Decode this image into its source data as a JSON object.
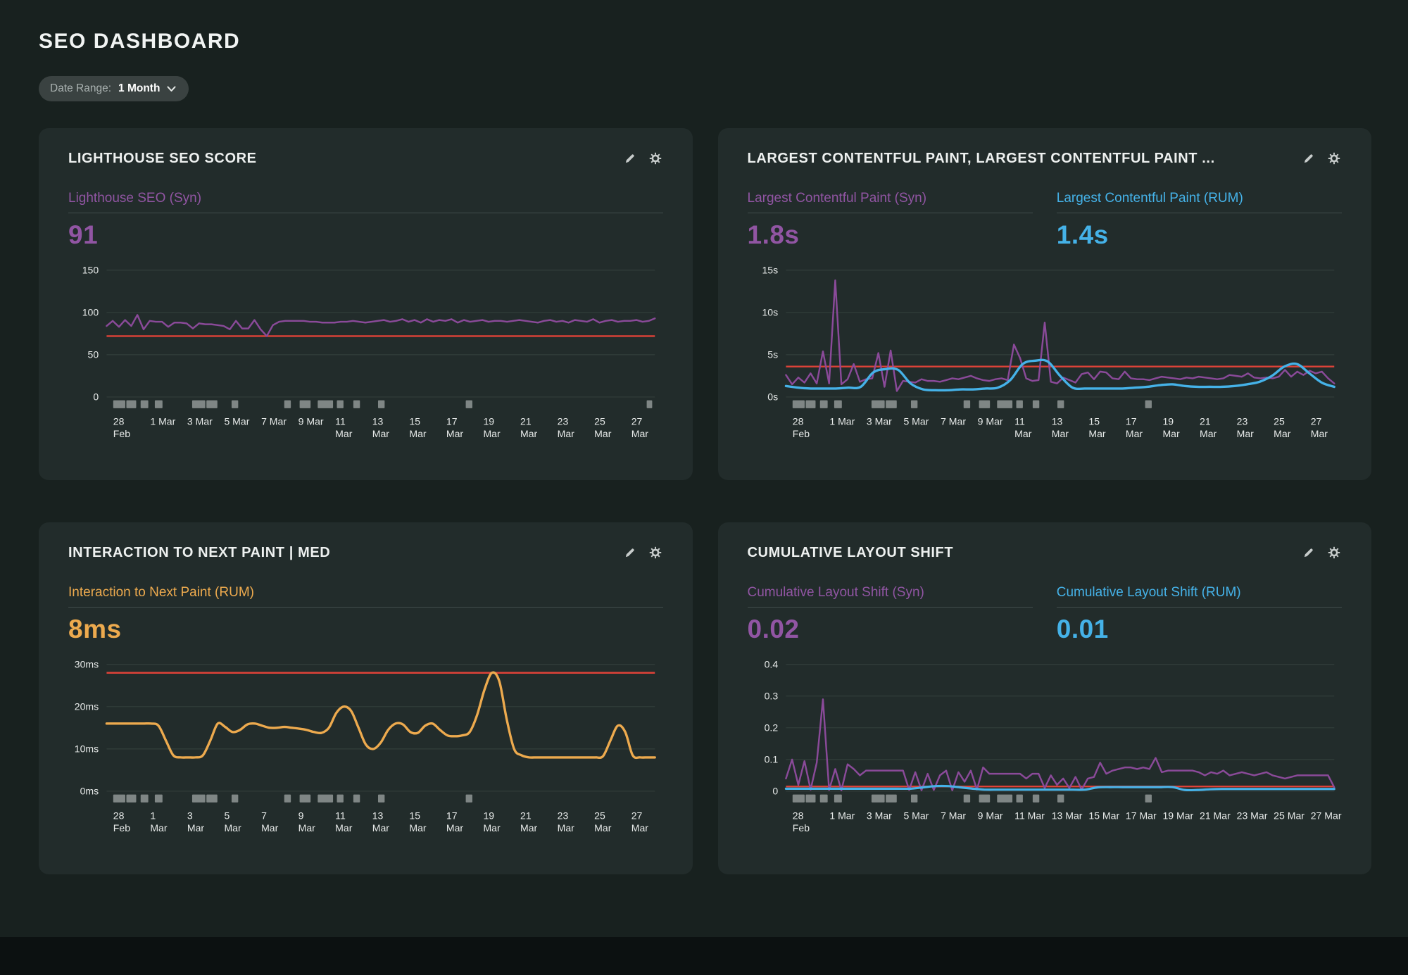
{
  "header": {
    "title": "SEO DASHBOARD"
  },
  "date_range": {
    "label": "Date Range:",
    "value": "1 Month"
  },
  "panel_actions": {
    "edit": "edit-widget",
    "settings": "widget-settings"
  },
  "colors": {
    "page_bg": "#18211f",
    "panel_bg": "#222c2b",
    "purple": "#9155a3",
    "purple_line": "#8a4a99",
    "blue": "#45b2e8",
    "orange": "#edaa4e",
    "red": "#de4238",
    "marker": "#8f9695",
    "grid": "#37423f"
  },
  "chart_data": [
    {
      "type": "line",
      "title": "LIGHTHOUSE SEO SCORE",
      "metrics": [
        {
          "label": "Lighthouse SEO (Syn)",
          "value": "91",
          "color": "#9155a3"
        }
      ],
      "ylim": [
        0,
        150
      ],
      "yticks": [
        {
          "v": 150,
          "label": "150"
        },
        {
          "v": 100,
          "label": "100"
        },
        {
          "v": 50,
          "label": "50"
        },
        {
          "v": 0,
          "label": "0"
        }
      ],
      "threshold": 72,
      "x_labels": [
        [
          "28",
          "Feb"
        ],
        [
          "1 Mar"
        ],
        [
          "3 Mar"
        ],
        [
          "5 Mar"
        ],
        [
          "7 Mar"
        ],
        [
          "9 Mar"
        ],
        [
          "11",
          "Mar"
        ],
        [
          "13",
          "Mar"
        ],
        [
          "15",
          "Mar"
        ],
        [
          "17",
          "Mar"
        ],
        [
          "19",
          "Mar"
        ],
        [
          "21",
          "Mar"
        ],
        [
          "23",
          "Mar"
        ],
        [
          "25",
          "Mar"
        ],
        [
          "27",
          "Mar"
        ]
      ],
      "series": [
        {
          "name": "Lighthouse SEO (Syn)",
          "color": "#8a4a99",
          "width": 2.6,
          "smooth": false,
          "values": [
            84,
            90,
            83,
            91,
            84,
            97,
            80,
            90,
            89,
            89,
            83,
            88,
            88,
            87,
            81,
            87,
            86,
            86,
            85,
            84,
            80,
            90,
            81,
            81,
            91,
            80,
            72,
            85,
            89,
            90,
            90,
            90,
            90,
            89,
            89,
            88,
            88,
            88,
            89,
            89,
            90,
            89,
            88,
            89,
            90,
            91,
            89,
            90,
            92,
            89,
            91,
            88,
            92,
            89,
            91,
            90,
            92,
            88,
            91,
            89,
            90,
            91,
            89,
            90,
            90,
            89,
            90,
            91,
            90,
            89,
            88,
            90,
            91,
            89,
            90,
            88,
            91,
            90,
            89,
            92,
            88,
            90,
            91,
            89,
            90,
            90,
            91,
            89,
            90,
            93
          ]
        }
      ],
      "markers": [
        [
          0.012,
          0.022
        ],
        [
          0.036,
          0.018
        ],
        [
          0.062,
          0.014
        ],
        [
          0.088,
          0.014
        ],
        [
          0.156,
          0.024
        ],
        [
          0.182,
          0.02
        ],
        [
          0.228,
          0.012
        ],
        [
          0.324,
          0.012
        ],
        [
          0.352,
          0.02
        ],
        [
          0.385,
          0.028
        ],
        [
          0.42,
          0.012
        ],
        [
          0.45,
          0.012
        ],
        [
          0.495,
          0.012
        ],
        [
          0.655,
          0.012
        ],
        [
          0.985,
          0.01
        ]
      ]
    },
    {
      "type": "line",
      "title": "LARGEST CONTENTFUL PAINT, LARGEST CONTENTFUL PAINT ...",
      "metrics": [
        {
          "label": "Largest Contentful Paint (Syn)",
          "value": "1.8s",
          "color": "#9155a3"
        },
        {
          "label": "Largest Contentful Paint (RUM)",
          "value": "1.4s",
          "color": "#45b2e8"
        }
      ],
      "ylim": [
        0,
        15
      ],
      "yticks": [
        {
          "v": 15,
          "label": "15s"
        },
        {
          "v": 10,
          "label": "10s"
        },
        {
          "v": 5,
          "label": "5s"
        },
        {
          "v": 0,
          "label": "0s"
        }
      ],
      "threshold": 3.6,
      "x_labels": [
        [
          "28",
          "Feb"
        ],
        [
          "1 Mar"
        ],
        [
          "3 Mar"
        ],
        [
          "5 Mar"
        ],
        [
          "7 Mar"
        ],
        [
          "9 Mar"
        ],
        [
          "11",
          "Mar"
        ],
        [
          "13",
          "Mar"
        ],
        [
          "15",
          "Mar"
        ],
        [
          "17",
          "Mar"
        ],
        [
          "19",
          "Mar"
        ],
        [
          "21",
          "Mar"
        ],
        [
          "23",
          "Mar"
        ],
        [
          "25",
          "Mar"
        ],
        [
          "27",
          "Mar"
        ]
      ],
      "series": [
        {
          "name": "Largest Contentful Paint (Syn)",
          "color": "#8a4a99",
          "width": 2.6,
          "smooth": false,
          "values": [
            2.6,
            1.5,
            2.3,
            1.7,
            2.8,
            1.6,
            5.4,
            1.6,
            13.8,
            1.5,
            2.1,
            3.9,
            1.8,
            2.1,
            2.2,
            5.2,
            1.2,
            5.5,
            0.7,
            1.9,
            1.8,
            1.7,
            2.1,
            1.9,
            1.9,
            1.8,
            2.0,
            2.2,
            2.1,
            2.3,
            2.5,
            2.2,
            2.0,
            1.9,
            2.1,
            2.2,
            2.0,
            6.2,
            4.6,
            2.2,
            1.9,
            2.0,
            8.8,
            1.8,
            1.6,
            2.3,
            2.0,
            1.7,
            2.7,
            2.9,
            2.1,
            3.0,
            2.9,
            2.2,
            2.1,
            3.0,
            2.2,
            2.1,
            2.1,
            2.0,
            2.2,
            2.4,
            2.3,
            2.2,
            2.1,
            2.3,
            2.2,
            2.4,
            2.3,
            2.2,
            2.1,
            2.2,
            2.6,
            2.5,
            2.4,
            2.8,
            2.3,
            2.2,
            2.3,
            2.2,
            2.4,
            3.2,
            2.4,
            3.0,
            2.6,
            3.1,
            2.8,
            3.0,
            2.2,
            1.6
          ]
        },
        {
          "name": "Largest Contentful Paint (RUM)",
          "color": "#45b2e8",
          "width": 3.6,
          "smooth": true,
          "values": [
            1.3,
            1.1,
            1.0,
            1.0,
            1.0,
            1.1,
            1.2,
            2.9,
            3.3,
            3.2,
            1.6,
            0.9,
            0.8,
            0.8,
            0.9,
            0.9,
            1.0,
            1.1,
            2.0,
            3.9,
            4.3,
            4.2,
            2.5,
            1.1,
            1.0,
            1.0,
            1.0,
            1.0,
            1.1,
            1.2,
            1.4,
            1.5,
            1.3,
            1.2,
            1.2,
            1.2,
            1.3,
            1.5,
            1.8,
            2.5,
            3.6,
            3.9,
            2.8,
            1.7,
            1.2
          ]
        }
      ],
      "markers": [
        [
          0.012,
          0.022
        ],
        [
          0.036,
          0.018
        ],
        [
          0.062,
          0.014
        ],
        [
          0.088,
          0.014
        ],
        [
          0.156,
          0.024
        ],
        [
          0.182,
          0.02
        ],
        [
          0.228,
          0.012
        ],
        [
          0.324,
          0.012
        ],
        [
          0.352,
          0.02
        ],
        [
          0.385,
          0.028
        ],
        [
          0.42,
          0.012
        ],
        [
          0.45,
          0.012
        ],
        [
          0.495,
          0.012
        ],
        [
          0.655,
          0.012
        ]
      ]
    },
    {
      "type": "line",
      "title": "INTERACTION TO NEXT PAINT | MED",
      "metrics": [
        {
          "label": "Interaction to Next Paint (RUM)",
          "value": "8ms",
          "color": "#edaa4e"
        }
      ],
      "ylim": [
        0,
        30
      ],
      "yticks": [
        {
          "v": 30,
          "label": "30ms"
        },
        {
          "v": 20,
          "label": "20ms"
        },
        {
          "v": 10,
          "label": "10ms"
        },
        {
          "v": 0,
          "label": "0ms"
        }
      ],
      "threshold": 28,
      "x_labels": [
        [
          "28",
          "Feb"
        ],
        [
          "1",
          "Mar"
        ],
        [
          "3",
          "Mar"
        ],
        [
          "5",
          "Mar"
        ],
        [
          "7",
          "Mar"
        ],
        [
          "9",
          "Mar"
        ],
        [
          "11",
          "Mar"
        ],
        [
          "13",
          "Mar"
        ],
        [
          "15",
          "Mar"
        ],
        [
          "17",
          "Mar"
        ],
        [
          "19",
          "Mar"
        ],
        [
          "21",
          "Mar"
        ],
        [
          "23",
          "Mar"
        ],
        [
          "25",
          "Mar"
        ],
        [
          "27",
          "Mar"
        ]
      ],
      "series": [
        {
          "name": "Interaction to Next Paint (RUM)",
          "color": "#edaa4e",
          "width": 3.6,
          "smooth": true,
          "values": [
            16,
            16,
            16,
            16,
            16,
            16,
            16,
            15.5,
            12,
            8.5,
            8,
            8,
            8,
            8.5,
            12,
            16,
            15.2,
            14,
            14.5,
            15.8,
            16,
            15.5,
            15,
            15,
            15.2,
            15,
            14.8,
            14.5,
            14,
            13.8,
            15,
            18.5,
            20,
            19,
            15,
            11,
            10,
            11.5,
            14.5,
            16,
            15.8,
            14,
            13.8,
            15.5,
            16,
            14.5,
            13.2,
            13,
            13.2,
            14,
            18,
            24,
            28,
            26,
            17,
            10,
            8.5,
            8,
            8,
            8,
            8,
            8,
            8,
            8,
            8,
            8,
            8,
            8.3,
            12,
            15.5,
            14,
            8.5,
            8,
            8,
            8
          ]
        }
      ],
      "markers": [
        [
          0.012,
          0.022
        ],
        [
          0.036,
          0.018
        ],
        [
          0.062,
          0.014
        ],
        [
          0.088,
          0.014
        ],
        [
          0.156,
          0.024
        ],
        [
          0.182,
          0.02
        ],
        [
          0.228,
          0.012
        ],
        [
          0.324,
          0.012
        ],
        [
          0.352,
          0.02
        ],
        [
          0.385,
          0.028
        ],
        [
          0.42,
          0.012
        ],
        [
          0.45,
          0.012
        ],
        [
          0.495,
          0.012
        ],
        [
          0.655,
          0.012
        ]
      ]
    },
    {
      "type": "line",
      "title": "CUMULATIVE LAYOUT SHIFT",
      "metrics": [
        {
          "label": "Cumulative Layout Shift (Syn)",
          "value": "0.02",
          "color": "#9155a3"
        },
        {
          "label": "Cumulative Layout Shift (RUM)",
          "value": "0.01",
          "color": "#45b2e8"
        }
      ],
      "ylim": [
        0,
        0.4
      ],
      "yticks": [
        {
          "v": 0.4,
          "label": "0.4"
        },
        {
          "v": 0.3,
          "label": "0.3"
        },
        {
          "v": 0.2,
          "label": "0.2"
        },
        {
          "v": 0.1,
          "label": "0.1"
        },
        {
          "v": 0,
          "label": "0"
        }
      ],
      "threshold": 0.015,
      "x_labels": [
        [
          "28",
          "Feb"
        ],
        [
          "1 Mar"
        ],
        [
          "3 Mar"
        ],
        [
          "5 Mar"
        ],
        [
          "7 Mar"
        ],
        [
          "9 Mar"
        ],
        [
          "11 Mar"
        ],
        [
          "13 Mar"
        ],
        [
          "15 Mar"
        ],
        [
          "17 Mar"
        ],
        [
          "19 Mar"
        ],
        [
          "21 Mar"
        ],
        [
          "23 Mar"
        ],
        [
          "25 Mar"
        ],
        [
          "27 Mar"
        ]
      ],
      "series": [
        {
          "name": "Cumulative Layout Shift (Syn)",
          "color": "#8a4a99",
          "width": 2.6,
          "smooth": false,
          "values": [
            0.04,
            0.1,
            0.02,
            0.095,
            0.005,
            0.09,
            0.29,
            0.004,
            0.07,
            0.003,
            0.085,
            0.07,
            0.05,
            0.065,
            0.065,
            0.065,
            0.065,
            0.065,
            0.065,
            0.065,
            0.004,
            0.06,
            0.003,
            0.055,
            0.004,
            0.05,
            0.065,
            0.003,
            0.06,
            0.03,
            0.065,
            0.005,
            0.075,
            0.055,
            0.055,
            0.055,
            0.055,
            0.055,
            0.055,
            0.04,
            0.055,
            0.055,
            0.01,
            0.05,
            0.02,
            0.04,
            0.01,
            0.045,
            0.005,
            0.04,
            0.045,
            0.09,
            0.055,
            0.065,
            0.07,
            0.075,
            0.075,
            0.07,
            0.075,
            0.07,
            0.105,
            0.06,
            0.065,
            0.065,
            0.065,
            0.065,
            0.065,
            0.06,
            0.05,
            0.06,
            0.055,
            0.065,
            0.05,
            0.055,
            0.06,
            0.055,
            0.05,
            0.055,
            0.06,
            0.05,
            0.045,
            0.04,
            0.045,
            0.05,
            0.05,
            0.05,
            0.05,
            0.05,
            0.05,
            0.012
          ]
        },
        {
          "name": "Cumulative Layout Shift (RUM)",
          "color": "#45b2e8",
          "width": 3.4,
          "smooth": true,
          "values": [
            0.008,
            0.008,
            0.008,
            0.008,
            0.008,
            0.008,
            0.008,
            0.008,
            0.008,
            0.008,
            0.008,
            0.012,
            0.016,
            0.016,
            0.012,
            0.008,
            0.005,
            0.005,
            0.005,
            0.005,
            0.005,
            0.005,
            0.005,
            0.005,
            0.005,
            0.012,
            0.013,
            0.013,
            0.013,
            0.013,
            0.013,
            0.013,
            0.004,
            0.004,
            0.006,
            0.007,
            0.007,
            0.007,
            0.007,
            0.007,
            0.007,
            0.007,
            0.007,
            0.007,
            0.007
          ]
        }
      ],
      "markers": [
        [
          0.012,
          0.022
        ],
        [
          0.036,
          0.018
        ],
        [
          0.062,
          0.014
        ],
        [
          0.088,
          0.014
        ],
        [
          0.156,
          0.024
        ],
        [
          0.182,
          0.02
        ],
        [
          0.228,
          0.012
        ],
        [
          0.324,
          0.012
        ],
        [
          0.352,
          0.02
        ],
        [
          0.385,
          0.028
        ],
        [
          0.42,
          0.012
        ],
        [
          0.45,
          0.012
        ],
        [
          0.495,
          0.012
        ],
        [
          0.655,
          0.012
        ]
      ]
    }
  ]
}
